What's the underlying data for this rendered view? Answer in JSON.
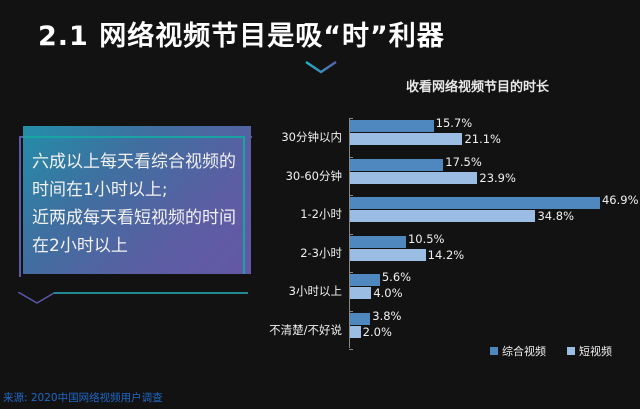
{
  "header": {
    "title": "2.1 网络视频节目是吸“时”利器"
  },
  "card": {
    "lines": [
      "六成以上每天看综合视频的",
      "时间在1小时以上;",
      "近两成每天看短视频的时间",
      "在2小时以上"
    ]
  },
  "source": "来源: 2020中国网络视频用户调查",
  "colors": {
    "series1": "#4f87bf",
    "series2": "#9bbde4",
    "background": "#121212",
    "source": "#1f68c6"
  },
  "chart_data": {
    "type": "bar",
    "orientation": "horizontal",
    "title": "收看网络视频节目的时长",
    "categories": [
      "30分钟以内",
      "30-60分钟",
      "1-2小时",
      "2-3小时",
      "3小时以上",
      "不清楚/不好说"
    ],
    "series": [
      {
        "name": "综合视频",
        "values": [
          15.7,
          17.5,
          46.9,
          10.5,
          5.6,
          3.8
        ],
        "labels": [
          "15.7%",
          "17.5%",
          "46.9%",
          "10.5%",
          "5.6%",
          "3.8%"
        ]
      },
      {
        "name": "短视频",
        "values": [
          21.1,
          23.9,
          34.8,
          14.2,
          4.0,
          2.0
        ],
        "labels": [
          "21.1%",
          "23.9%",
          "34.8%",
          "14.2%",
          "4.0%",
          "2.0%"
        ]
      }
    ],
    "xlabel": "",
    "ylabel": "",
    "unit": "%",
    "legend_position": "bottom-right",
    "grid": false
  }
}
